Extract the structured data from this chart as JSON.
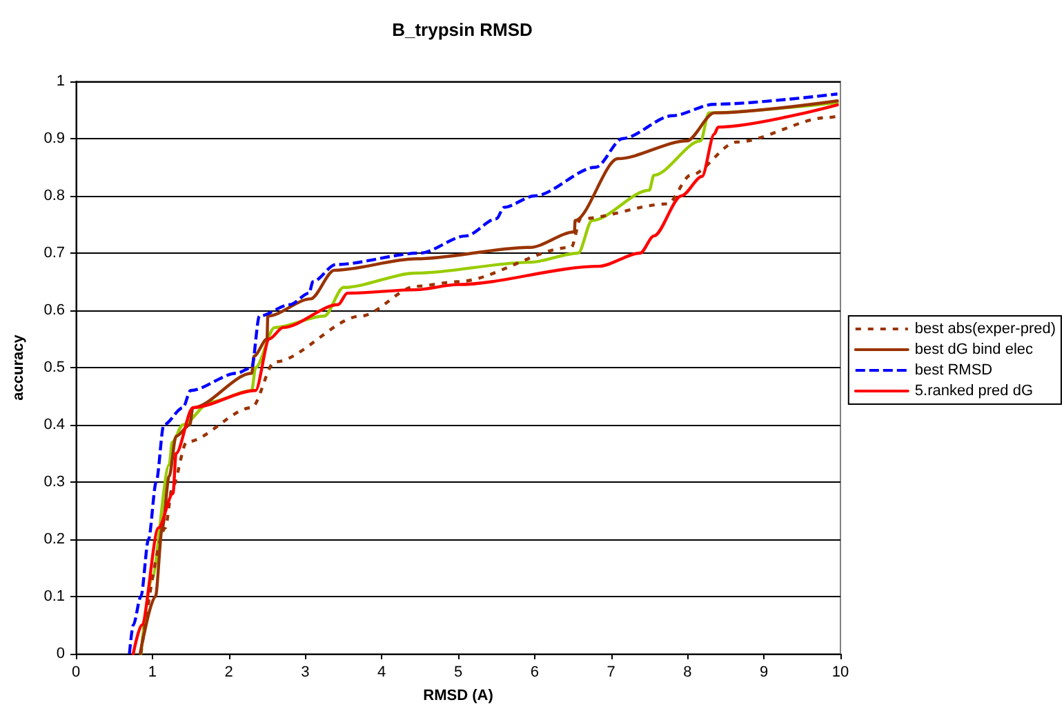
{
  "chart_data": {
    "type": "line",
    "title": "B_trypsin RMSD",
    "xlabel": "RMSD (A)",
    "ylabel": "accuracy",
    "xlim": [
      0,
      10
    ],
    "xticks": [
      0,
      1,
      2,
      3,
      4,
      5,
      6,
      7,
      8,
      9,
      10
    ],
    "ylim": [
      0,
      1
    ],
    "yticks": [
      0,
      0.1,
      0.2,
      0.3,
      0.4,
      0.5,
      0.6,
      0.7,
      0.8,
      0.9,
      1
    ],
    "grid": "y",
    "legend": "right",
    "marker": "none",
    "series": [
      {
        "color": "#99cc00",
        "line_style": "solid",
        "x": [
          0.85,
          0.99,
          1.22,
          1.26,
          1.4,
          1.76,
          2.3,
          2.35,
          2.6,
          3.25,
          3.5,
          4.45,
          5.94,
          6.57,
          6.75,
          7.5,
          7.56,
          8.17,
          8.28,
          9.96
        ],
        "values": [
          0,
          0.13,
          0.33,
          0.37,
          0.4,
          0.44,
          0.46,
          0.5,
          0.57,
          0.59,
          0.64,
          0.665,
          0.684,
          0.7,
          0.757,
          0.81,
          0.836,
          0.896,
          0.945,
          0.963
        ]
      },
      {
        "name": "best abs(exper-pred)",
        "color": "#993300",
        "line_style": "dotted",
        "x": [
          0.85,
          1.17,
          1.26,
          1.45,
          2.3,
          2.6,
          3.73,
          4.45,
          4.99,
          6.48,
          6.6,
          7.74,
          8.04,
          8.64,
          9.84,
          10
        ],
        "values": [
          0,
          0.22,
          0.29,
          0.37,
          0.43,
          0.51,
          0.59,
          0.642,
          0.65,
          0.71,
          0.76,
          0.786,
          0.836,
          0.894,
          0.937,
          0.94
        ]
      },
      {
        "name": "best dG bind elec",
        "color": "#993300",
        "line_style": "solid",
        "x": [
          0.84,
          1.04,
          1.13,
          1.22,
          1.31,
          1.49,
          1.53,
          2.3,
          2.33,
          2.5,
          2.51,
          3.07,
          3.38,
          4.45,
          5.94,
          6.52,
          6.53,
          7.09,
          7.99,
          8.35,
          9.96
        ],
        "values": [
          0,
          0.1,
          0.22,
          0.31,
          0.38,
          0.4,
          0.43,
          0.49,
          0.52,
          0.55,
          0.59,
          0.62,
          0.67,
          0.69,
          0.71,
          0.737,
          0.757,
          0.865,
          0.896,
          0.945,
          0.966
        ]
      },
      {
        "name": "best RMSD",
        "color": "#0000ff",
        "line_style": "dashed",
        "x": [
          0.7,
          0.75,
          0.85,
          0.95,
          1.05,
          1.15,
          1.4,
          1.5,
          2.1,
          2.3,
          2.4,
          2.8,
          3.05,
          3.1,
          3.4,
          4.5,
          5.1,
          5.5,
          5.6,
          6.0,
          6.8,
          7.15,
          7.8,
          8.35,
          9.96
        ],
        "values": [
          0,
          0.05,
          0.1,
          0.2,
          0.3,
          0.4,
          0.43,
          0.46,
          0.49,
          0.5,
          0.59,
          0.61,
          0.63,
          0.65,
          0.68,
          0.7,
          0.73,
          0.76,
          0.78,
          0.8,
          0.85,
          0.9,
          0.94,
          0.96,
          0.978
        ]
      },
      {
        "name": "5.ranked pred dG",
        "color": "#ff0000",
        "line_style": "solid",
        "x": [
          0.75,
          0.86,
          1.08,
          1.27,
          1.31,
          1.53,
          2.35,
          2.53,
          2.71,
          3.43,
          3.55,
          4.45,
          4.99,
          6.84,
          7.38,
          7.56,
          7.92,
          8.19,
          8.35,
          8.4,
          9.96
        ],
        "values": [
          0,
          0.05,
          0.22,
          0.28,
          0.35,
          0.43,
          0.46,
          0.55,
          0.57,
          0.61,
          0.63,
          0.636,
          0.645,
          0.677,
          0.7,
          0.73,
          0.8,
          0.834,
          0.908,
          0.92,
          0.959
        ]
      }
    ]
  }
}
